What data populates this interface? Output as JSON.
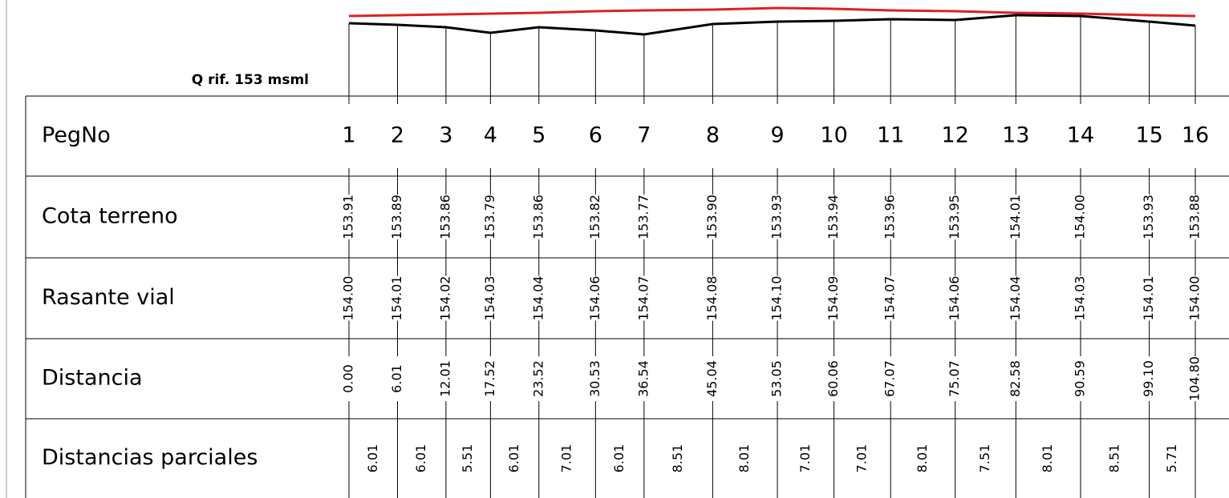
{
  "reference": {
    "label": "Q rif. 153 msml",
    "value": 153
  },
  "rows": [
    {
      "label": "PegNo",
      "values": [
        1,
        2,
        3,
        4,
        5,
        6,
        7,
        8,
        9,
        10,
        11,
        12,
        13,
        14,
        15,
        16
      ]
    },
    {
      "label": "Cota terreno",
      "values": [
        "153.91",
        "153.89",
        "153.86",
        "153.79",
        "153.86",
        "153.82",
        "153.77",
        "153.90",
        "153.93",
        "153.94",
        "153.96",
        "153.95",
        "154.01",
        "154.00",
        "153.93",
        "153.88"
      ]
    },
    {
      "label": "Rasante vial",
      "values": [
        "154.00",
        "154.01",
        "154.02",
        "154.03",
        "154.04",
        "154.06",
        "154.07",
        "154.08",
        "154.10",
        "154.09",
        "154.07",
        "154.06",
        "154.04",
        "154.03",
        "154.01",
        "154.00"
      ]
    },
    {
      "label": "Distancia",
      "values": [
        "0.00",
        "6.01",
        "12.01",
        "17.52",
        "23.52",
        "30.53",
        "36.54",
        "45.04",
        "53.05",
        "60.06",
        "67.07",
        "75.07",
        "82.58",
        "90.59",
        "99.10",
        "104.80"
      ]
    },
    {
      "label": "Distancias parciales",
      "values": [
        "6.01",
        "6.01",
        "5.51",
        "6.01",
        "7.01",
        "6.01",
        "8.51",
        "8.01",
        "7.01",
        "7.01",
        "8.01",
        "7.51",
        "8.01",
        "8.51",
        "5.71"
      ]
    }
  ]
}
